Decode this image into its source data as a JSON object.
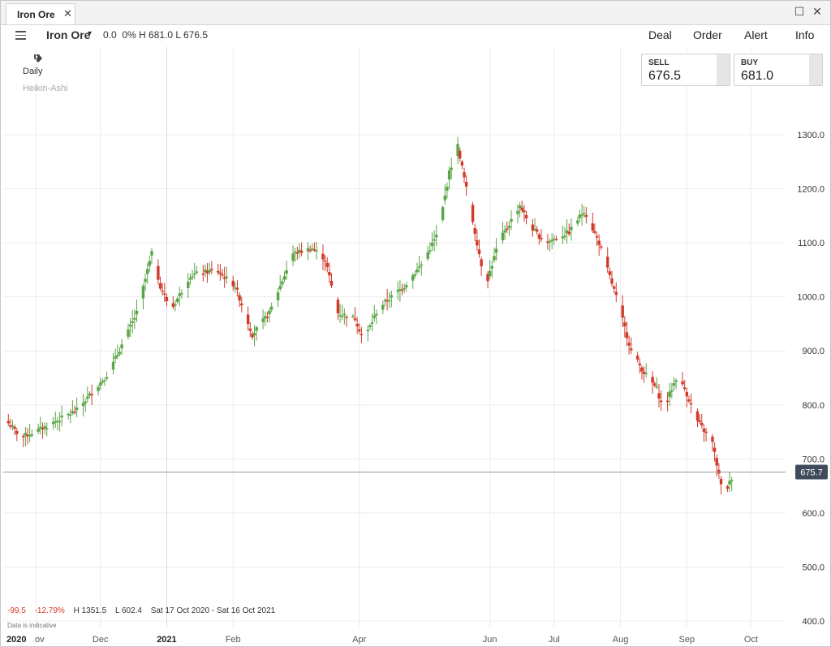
{
  "window": {
    "tab_title": "Iron Ore",
    "tab_close": "✕",
    "maximize_glyph": "☐",
    "close_glyph": "✕"
  },
  "toolbar": {
    "instrument": "Iron Ore",
    "caret": "▾",
    "change": "0.0",
    "change_pct": "0%",
    "high": "H 681.0",
    "low": "L 676.5",
    "actions": [
      "Deal",
      "Order",
      "Alert",
      "Info"
    ]
  },
  "prices": {
    "sell_label": "SELL",
    "sell_value": "676.5",
    "buy_label": "BUY",
    "buy_value": "681.0"
  },
  "chart_labels": {
    "period": "Daily",
    "style": "Heikin-Ashi"
  },
  "stats": {
    "change": "-99.5",
    "change_pct": "-12.79%",
    "high": "H 1351.5",
    "low": "L 602.4",
    "range": "Sat 17 Oct 2020 - Sat 16 Oct 2021",
    "note": "Data is indicative"
  },
  "colors": {
    "up": "#5aa545",
    "down": "#d23a2a",
    "price_tag": "#3f4a5c",
    "grid": "#ececec"
  },
  "chart_data": {
    "type": "candlestick",
    "style": "Heikin-Ashi",
    "interval": "Daily",
    "ylim": [
      400,
      1300
    ],
    "y_ticks": [
      400,
      500,
      600,
      700,
      800,
      900,
      1000,
      1100,
      1200,
      1300
    ],
    "y_tick_labels": [
      "400.0",
      "500.0",
      "600.0",
      "700.0",
      "800.0",
      "900.0",
      "1000.0",
      "1100.0",
      "1200.0",
      "1300.0"
    ],
    "x_tick_labels": [
      "2020",
      "ov",
      "Dec",
      "2021",
      "Feb",
      "Apr",
      "Jun",
      "Jul",
      "Aug",
      "Sep",
      "Oct"
    ],
    "current_price_label": "675.7",
    "current_price": 675.7,
    "close_path": [
      [
        "2020-10-17",
        775
      ],
      [
        "2020-10-25",
        740
      ],
      [
        "2020-11-03",
        755
      ],
      [
        "2020-11-20",
        790
      ],
      [
        "2020-12-05",
        860
      ],
      [
        "2020-12-18",
        970
      ],
      [
        "2020-12-25",
        1080
      ],
      [
        "2020-12-29",
        1020
      ],
      [
        "2021-01-03",
        975
      ],
      [
        "2021-01-12",
        1040
      ],
      [
        "2021-01-24",
        1050
      ],
      [
        "2021-02-02",
        1020
      ],
      [
        "2021-02-10",
        930
      ],
      [
        "2021-02-18",
        970
      ],
      [
        "2021-03-01",
        1080
      ],
      [
        "2021-03-10",
        1090
      ],
      [
        "2021-03-16",
        1070
      ],
      [
        "2021-03-22",
        970
      ],
      [
        "2021-03-30",
        960
      ],
      [
        "2021-04-03",
        920
      ],
      [
        "2021-04-10",
        980
      ],
      [
        "2021-04-22",
        1020
      ],
      [
        "2021-04-30",
        1060
      ],
      [
        "2021-05-08",
        1120
      ],
      [
        "2021-05-13",
        1230
      ],
      [
        "2021-05-17",
        1280
      ],
      [
        "2021-05-22",
        1180
      ],
      [
        "2021-05-30",
        1020
      ],
      [
        "2021-06-05",
        1100
      ],
      [
        "2021-06-15",
        1170
      ],
      [
        "2021-06-20",
        1130
      ],
      [
        "2021-06-27",
        1100
      ],
      [
        "2021-07-08",
        1120
      ],
      [
        "2021-07-15",
        1160
      ],
      [
        "2021-07-22",
        1100
      ],
      [
        "2021-07-30",
        1000
      ],
      [
        "2021-08-06",
        900
      ],
      [
        "2021-08-12",
        860
      ],
      [
        "2021-08-18",
        830
      ],
      [
        "2021-08-21",
        790
      ],
      [
        "2021-08-27",
        850
      ],
      [
        "2021-08-31",
        830
      ],
      [
        "2021-09-06",
        770
      ],
      [
        "2021-09-13",
        730
      ],
      [
        "2021-09-18",
        630
      ],
      [
        "2021-09-22",
        665
      ]
    ]
  }
}
